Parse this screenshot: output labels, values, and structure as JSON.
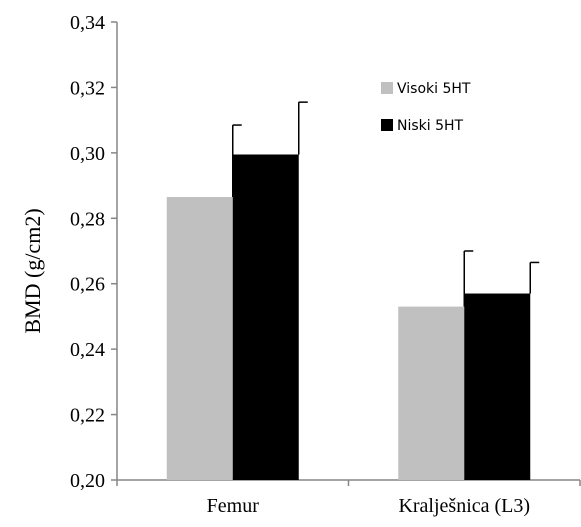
{
  "chart_data": {
    "type": "bar",
    "title": "",
    "xlabel": "",
    "ylabel": "BMD (g/cm2)",
    "ylim": [
      0.2,
      0.34
    ],
    "yticks": [
      "0,20",
      "0,22",
      "0,24",
      "0,26",
      "0,28",
      "0,30",
      "0,32",
      "0,34"
    ],
    "ytick_values": [
      0.2,
      0.22,
      0.24,
      0.26,
      0.28,
      0.3,
      0.32,
      0.34
    ],
    "categories": [
      "Femur",
      "Kralješnica (L3)"
    ],
    "series": [
      {
        "name": "Visoki 5HT",
        "values": [
          0.2865,
          0.253
        ],
        "errors": [
          0.022,
          0.017
        ],
        "color": "#c0c0c0"
      },
      {
        "name": "Niski 5HT",
        "values": [
          0.2995,
          0.257
        ],
        "errors": [
          0.016,
          0.0095
        ],
        "color": "#000000"
      }
    ],
    "grid": false,
    "legend_position": "top-right"
  }
}
